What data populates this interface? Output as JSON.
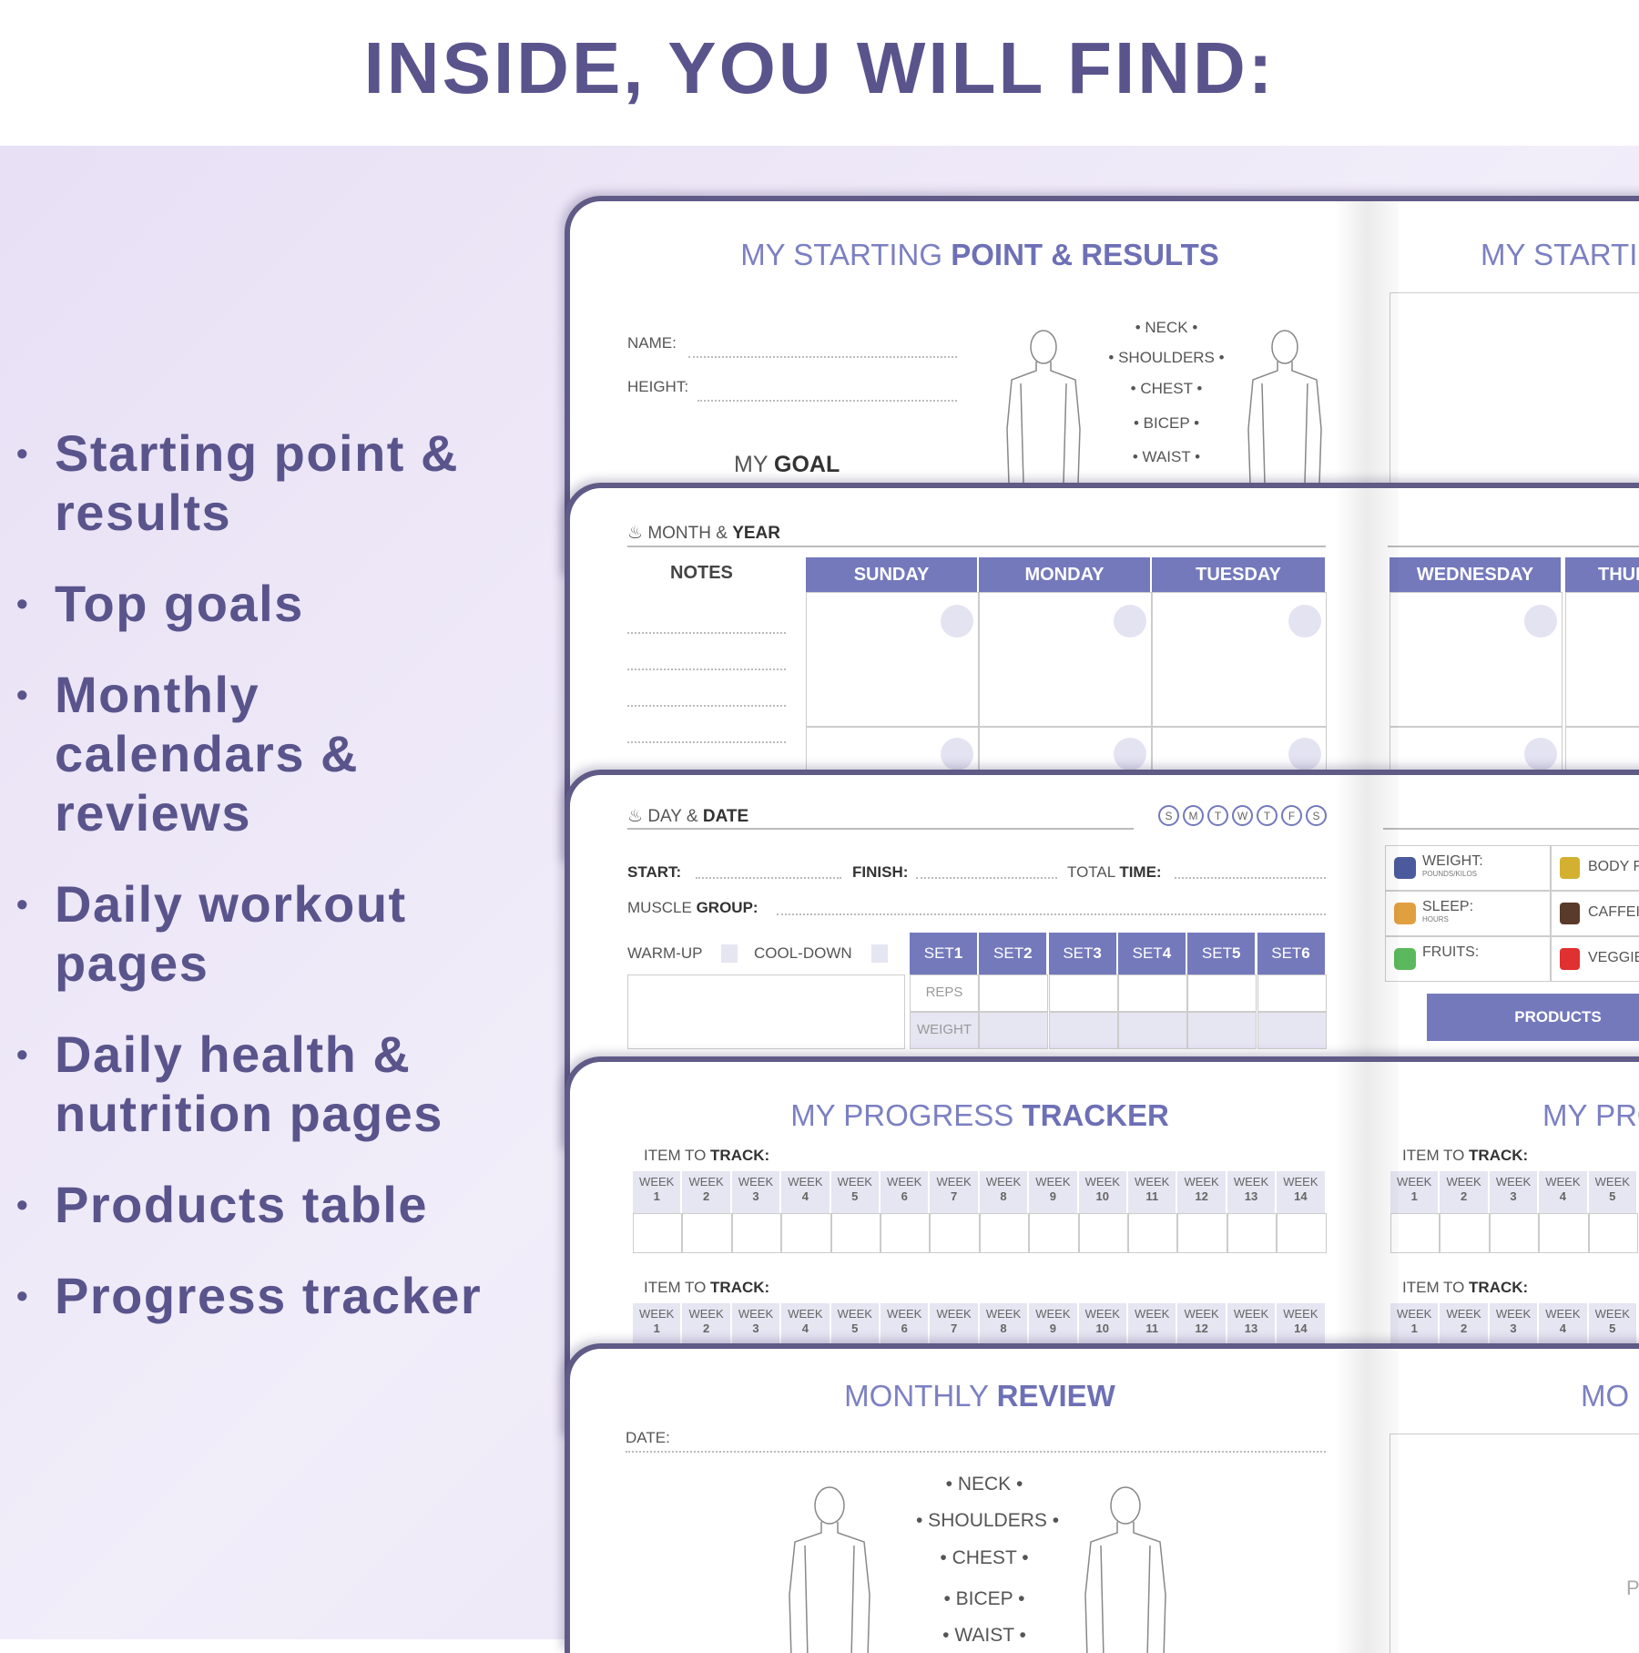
{
  "header": {
    "title": "INSIDE, YOU WILL FIND:"
  },
  "features": [
    "Starting point & results",
    "Top goals",
    "Monthly calendars & reviews",
    "Daily workout pages",
    "Daily health & nutrition pages",
    "Products table",
    "Progress tracker"
  ],
  "colors": {
    "title": "#5a548c",
    "accent": "#7479bc",
    "background": "#ece6f7",
    "cover": "#5f5a86"
  },
  "starting": {
    "title_light": "MY STARTING ",
    "title_bold": "POINT & RESULTS",
    "right_title": "MY STARTI",
    "name": "NAME:",
    "height": "HEIGHT:",
    "goal_light": "MY ",
    "goal_bold": "GOAL",
    "measurements": [
      "NECK",
      "SHOULDERS",
      "CHEST",
      "BICEP",
      "WAIST"
    ]
  },
  "calendar": {
    "month_light": "MONTH & ",
    "month_bold": "YEAR",
    "notes": "NOTES",
    "days": [
      "SUNDAY",
      "MONDAY",
      "TUESDAY"
    ],
    "right_days": [
      "WEDNESDAY",
      "THUR"
    ]
  },
  "workout": {
    "day_light": "DAY & ",
    "day_bold": "DATE",
    "weekdays": [
      "S",
      "M",
      "T",
      "W",
      "T",
      "F",
      "S"
    ],
    "start": "START:",
    "finish": "FINISH:",
    "total_light": "TOTAL ",
    "total_bold": "TIME:",
    "muscle_light": "MUSCLE ",
    "muscle_bold": "GROUP:",
    "warmup": "WARM-UP",
    "cooldown": "COOL-DOWN",
    "sets": [
      "1",
      "2",
      "3",
      "4",
      "5",
      "6"
    ],
    "set_prefix": "SET ",
    "reps": "REPS",
    "weight": "WEIGHT",
    "health": [
      {
        "label": "WEIGHT:",
        "sub": "POUNDS/KILOS",
        "icon": "scale-icon"
      },
      {
        "label": "SLEEP:",
        "sub": "HOURS",
        "icon": "moon-icon"
      },
      {
        "label": "FRUITS:",
        "sub": "",
        "icon": "apple-icon"
      }
    ],
    "health_right": [
      {
        "label": "BODY F",
        "icon": "ruler-icon"
      },
      {
        "label": "CAFFEI",
        "icon": "coffee-icon"
      },
      {
        "label": "VEGGIE",
        "icon": "pepper-icon"
      }
    ],
    "products": "PRODUCTS"
  },
  "tracker": {
    "title_light": "MY PROGRESS ",
    "title_bold": "TRACKER",
    "right_title": "MY PRO",
    "item_light": "ITEM TO ",
    "item_bold": "TRACK:",
    "week": "WEEK",
    "weeks": [
      "1",
      "2",
      "3",
      "4",
      "5",
      "6",
      "7",
      "8",
      "9",
      "10",
      "11",
      "12",
      "13",
      "14"
    ],
    "right_weeks": [
      "1",
      "2",
      "3",
      "4",
      "5"
    ]
  },
  "review": {
    "title_light": "MONTHLY ",
    "title_bold": "REVIEW",
    "right_title": "MO",
    "date": "DATE:",
    "measurements": [
      "NECK",
      "SHOULDERS",
      "CHEST",
      "BICEP",
      "WAIST"
    ],
    "right_partial": "PI"
  }
}
